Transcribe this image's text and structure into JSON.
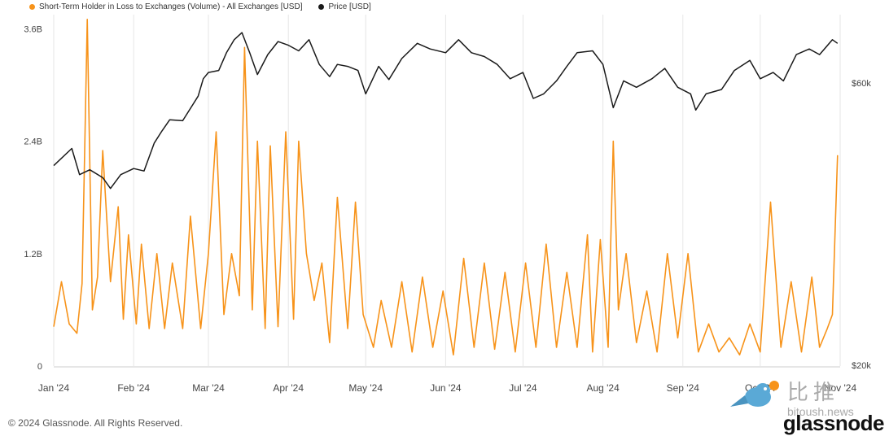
{
  "legend": {
    "series1": "Short-Term Holder in Loss to Exchanges (Volume) - All Exchanges [USD]",
    "series2": "Price [USD]"
  },
  "footer": {
    "copyright": "© 2024 Glassnode. All Rights Reserved.",
    "brand": "glassnode"
  },
  "watermark": {
    "chinese": "比推",
    "url": "bitoush.news"
  },
  "colors": {
    "volume": "#F7931A",
    "price": "#1a1a1a",
    "grid": "#e6e6e6"
  },
  "chart_data": {
    "type": "line",
    "y_left": {
      "ticks": [
        "0",
        "1.2B",
        "2.4B",
        "3.6B"
      ],
      "tick_values": [
        0,
        1.2,
        2.4,
        3.6
      ],
      "range": [
        0,
        3.75
      ],
      "unit": "B USD"
    },
    "y_right": {
      "ticks": [
        "$20k",
        "$60k"
      ],
      "tick_values": [
        20000,
        60000
      ],
      "scale": "log"
    },
    "x_ticks": [
      "Jan '24",
      "Feb '24",
      "Mar '24",
      "Apr '24",
      "May '24",
      "Jun '24",
      "Jul '24",
      "Aug '24",
      "Sep '24",
      "Oct '24",
      "Nov '24"
    ],
    "x_range": [
      "2024-01-01",
      "2024-11-01"
    ],
    "grid": "vertical",
    "series": [
      {
        "name": "Short-Term Holder in Loss to Exchanges (Volume) - All Exchanges [USD]",
        "axis": "left",
        "color": "#F7931A",
        "x": [
          "2024-01-01",
          "2024-01-04",
          "2024-01-07",
          "2024-01-10",
          "2024-01-12",
          "2024-01-14",
          "2024-01-16",
          "2024-01-18",
          "2024-01-20",
          "2024-01-23",
          "2024-01-26",
          "2024-01-28",
          "2024-01-30",
          "2024-02-02",
          "2024-02-04",
          "2024-02-07",
          "2024-02-10",
          "2024-02-13",
          "2024-02-16",
          "2024-02-20",
          "2024-02-23",
          "2024-02-27",
          "2024-03-01",
          "2024-03-04",
          "2024-03-07",
          "2024-03-10",
          "2024-03-13",
          "2024-03-15",
          "2024-03-18",
          "2024-03-20",
          "2024-03-23",
          "2024-03-25",
          "2024-03-28",
          "2024-03-31",
          "2024-04-03",
          "2024-04-05",
          "2024-04-08",
          "2024-04-11",
          "2024-04-14",
          "2024-04-17",
          "2024-04-20",
          "2024-04-24",
          "2024-04-27",
          "2024-04-30",
          "2024-05-04",
          "2024-05-07",
          "2024-05-11",
          "2024-05-15",
          "2024-05-19",
          "2024-05-23",
          "2024-05-27",
          "2024-05-31",
          "2024-06-04",
          "2024-06-08",
          "2024-06-12",
          "2024-06-16",
          "2024-06-20",
          "2024-06-24",
          "2024-06-28",
          "2024-07-02",
          "2024-07-06",
          "2024-07-10",
          "2024-07-14",
          "2024-07-18",
          "2024-07-22",
          "2024-07-26",
          "2024-07-28",
          "2024-07-31",
          "2024-08-03",
          "2024-08-05",
          "2024-08-07",
          "2024-08-10",
          "2024-08-14",
          "2024-08-18",
          "2024-08-22",
          "2024-08-26",
          "2024-08-30",
          "2024-09-03",
          "2024-09-07",
          "2024-09-11",
          "2024-09-15",
          "2024-09-19",
          "2024-09-23",
          "2024-09-27",
          "2024-10-01",
          "2024-10-05",
          "2024-10-09",
          "2024-10-13",
          "2024-10-17",
          "2024-10-21",
          "2024-10-24",
          "2024-10-27",
          "2024-10-29",
          "2024-10-31"
        ],
        "values": [
          0.42,
          0.9,
          0.45,
          0.35,
          0.88,
          3.7,
          0.6,
          0.95,
          2.3,
          0.9,
          1.7,
          0.5,
          1.4,
          0.45,
          1.3,
          0.4,
          1.2,
          0.4,
          1.1,
          0.4,
          1.6,
          0.4,
          1.2,
          2.5,
          0.55,
          1.2,
          0.75,
          3.4,
          0.6,
          2.4,
          0.4,
          2.35,
          0.42,
          2.5,
          0.5,
          2.4,
          1.2,
          0.7,
          1.1,
          0.25,
          1.8,
          0.4,
          1.75,
          0.55,
          0.2,
          0.7,
          0.2,
          0.9,
          0.15,
          0.95,
          0.2,
          0.8,
          0.12,
          1.15,
          0.2,
          1.1,
          0.18,
          1.0,
          0.15,
          1.1,
          0.2,
          1.3,
          0.2,
          1.0,
          0.2,
          1.4,
          0.15,
          1.35,
          0.2,
          2.4,
          0.6,
          1.2,
          0.25,
          0.8,
          0.15,
          1.2,
          0.3,
          1.2,
          0.15,
          0.45,
          0.15,
          0.3,
          0.12,
          0.45,
          0.15,
          1.75,
          0.2,
          0.9,
          0.15,
          0.95,
          0.2,
          0.4,
          0.55,
          2.25
        ]
      },
      {
        "name": "Price [USD]",
        "axis": "right",
        "color": "#1a1a1a",
        "x": [
          "2024-01-01",
          "2024-01-08",
          "2024-01-11",
          "2024-01-15",
          "2024-01-20",
          "2024-01-23",
          "2024-01-27",
          "2024-02-01",
          "2024-02-05",
          "2024-02-09",
          "2024-02-12",
          "2024-02-15",
          "2024-02-20",
          "2024-02-26",
          "2024-02-28",
          "2024-03-01",
          "2024-03-05",
          "2024-03-08",
          "2024-03-11",
          "2024-03-14",
          "2024-03-17",
          "2024-03-20",
          "2024-03-24",
          "2024-03-28",
          "2024-04-01",
          "2024-04-05",
          "2024-04-09",
          "2024-04-13",
          "2024-04-17",
          "2024-04-20",
          "2024-04-24",
          "2024-04-28",
          "2024-05-01",
          "2024-05-06",
          "2024-05-10",
          "2024-05-15",
          "2024-05-21",
          "2024-05-26",
          "2024-06-01",
          "2024-06-06",
          "2024-06-11",
          "2024-06-16",
          "2024-06-21",
          "2024-06-26",
          "2024-07-01",
          "2024-07-05",
          "2024-07-09",
          "2024-07-14",
          "2024-07-18",
          "2024-07-22",
          "2024-07-28",
          "2024-08-01",
          "2024-08-05",
          "2024-08-09",
          "2024-08-14",
          "2024-08-20",
          "2024-08-25",
          "2024-08-30",
          "2024-09-04",
          "2024-09-06",
          "2024-09-10",
          "2024-09-16",
          "2024-09-21",
          "2024-09-27",
          "2024-10-01",
          "2024-10-06",
          "2024-10-10",
          "2024-10-15",
          "2024-10-20",
          "2024-10-24",
          "2024-10-29",
          "2024-10-31"
        ],
        "values": [
          43500,
          46500,
          42000,
          42800,
          41500,
          39800,
          42000,
          43000,
          42600,
          47500,
          49800,
          52000,
          51800,
          57000,
          61000,
          62500,
          63000,
          67500,
          71000,
          73000,
          67500,
          62000,
          67000,
          70500,
          69500,
          68000,
          71000,
          64500,
          61500,
          64500,
          64000,
          63000,
          57500,
          64000,
          60800,
          66000,
          70000,
          68500,
          67500,
          71000,
          67500,
          66500,
          64500,
          61000,
          62500,
          56500,
          57500,
          60500,
          64000,
          67500,
          68000,
          64500,
          54500,
          60500,
          59000,
          61000,
          63500,
          59000,
          57500,
          54000,
          57500,
          58500,
          63000,
          65500,
          61000,
          62500,
          60500,
          67000,
          68500,
          67000,
          71000,
          70000
        ]
      }
    ]
  }
}
